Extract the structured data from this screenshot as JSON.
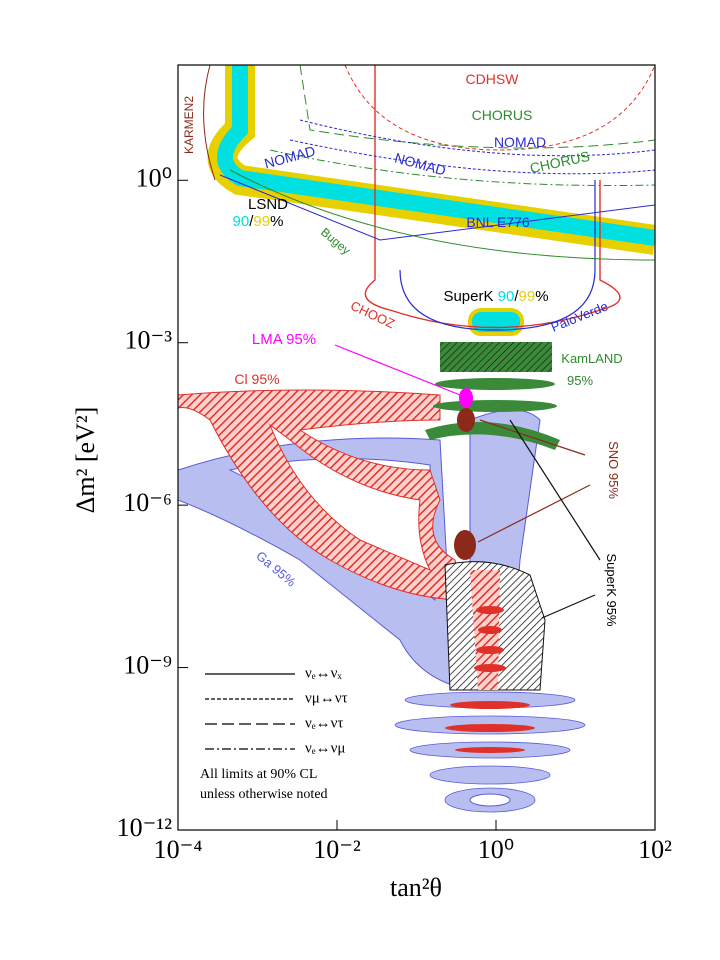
{
  "chart_data": {
    "type": "exclusion",
    "x_label": "tan²θ",
    "y_label": "Δm² [eV²]",
    "xscale": "log",
    "yscale": "log",
    "xlim": [
      0.0001,
      100
    ],
    "ylim": [
      1e-12,
      100
    ],
    "xticks": [
      {
        "value": 0.0001,
        "label": "10⁻⁴"
      },
      {
        "value": 0.01,
        "label": "10⁻²"
      },
      {
        "value": 1,
        "label": "10⁰"
      },
      {
        "value": 100,
        "label": "10²"
      }
    ],
    "yticks": [
      {
        "value": 1e-12,
        "label": "10⁻¹²"
      },
      {
        "value": 1e-09,
        "label": "10⁻⁹"
      },
      {
        "value": 1e-06,
        "label": "10⁻⁶"
      },
      {
        "value": 0.001,
        "label": "10⁻³"
      },
      {
        "value": 1,
        "label": "10⁰"
      }
    ],
    "annotations": [
      {
        "parts": [
          {
            "text": "CDHSW",
            "color": "#e0302a"
          }
        ]
      },
      {
        "parts": [
          {
            "text": "CHORUS",
            "color": "#2e8b2e"
          }
        ]
      },
      {
        "parts": [
          {
            "text": "NOMAD",
            "color": "#2a2ad0"
          }
        ]
      },
      {
        "parts": [
          {
            "text": "NOMAD",
            "color": "#2a2ad0"
          }
        ]
      },
      {
        "parts": [
          {
            "text": "CHORUS",
            "color": "#2e8b2e"
          }
        ]
      },
      {
        "parts": [
          {
            "text": "NOMAD",
            "color": "#2a2ad0"
          }
        ]
      },
      {
        "parts": [
          {
            "text": "KARMEN2",
            "color": "#8b2a1a"
          }
        ]
      },
      {
        "parts": [
          {
            "text": "LSND",
            "color": "#000000"
          }
        ]
      },
      {
        "parts": [
          {
            "text": "90",
            "color": "#00e0e0"
          },
          {
            "text": "/",
            "color": "#000000"
          },
          {
            "text": "99",
            "color": "#e6d000"
          },
          {
            "text": "%",
            "color": "#000000"
          }
        ]
      },
      {
        "parts": [
          {
            "text": "Bugey",
            "color": "#2e8b2e"
          }
        ]
      },
      {
        "parts": [
          {
            "text": "BNL E776",
            "color": "#2a2ad0"
          }
        ]
      },
      {
        "parts": [
          {
            "text": "SuperK ",
            "color": "#000000"
          },
          {
            "text": "90",
            "color": "#00e0e0"
          },
          {
            "text": "/",
            "color": "#000000"
          },
          {
            "text": "99",
            "color": "#e6d000"
          },
          {
            "text": "%",
            "color": "#000000"
          }
        ]
      },
      {
        "parts": [
          {
            "text": "CHOOZ",
            "color": "#e0302a"
          }
        ]
      },
      {
        "parts": [
          {
            "text": "PaloVerde",
            "color": "#2a2ad0"
          }
        ]
      },
      {
        "parts": [
          {
            "text": "LMA 95%",
            "color": "#ff00ff"
          }
        ]
      },
      {
        "parts": [
          {
            "text": "KamLAND",
            "color": "#2e8b2e"
          }
        ]
      },
      {
        "parts": [
          {
            "text": "95%",
            "color": "#2e8b2e"
          }
        ]
      },
      {
        "parts": [
          {
            "text": "Cl 95%",
            "color": "#e0302a"
          }
        ]
      },
      {
        "parts": [
          {
            "text": "SNO 95%",
            "color": "#8b2a1a"
          }
        ]
      },
      {
        "parts": [
          {
            "text": "Ga 95%",
            "color": "#5a5ad8"
          }
        ]
      },
      {
        "parts": [
          {
            "text": "SuperK 95%",
            "color": "#000000"
          }
        ]
      }
    ],
    "legend": {
      "entries": [
        {
          "label": "νₑ↔νₓ",
          "dash": "solid"
        },
        {
          "label": "νμ↔ντ",
          "dash": "short-dash"
        },
        {
          "label": "νₑ↔ντ",
          "dash": "long-dash"
        },
        {
          "label": "νₑ↔νμ",
          "dash": "dash-dot"
        }
      ],
      "note": [
        "All limits at 90% CL",
        "unless otherwise noted"
      ]
    }
  }
}
